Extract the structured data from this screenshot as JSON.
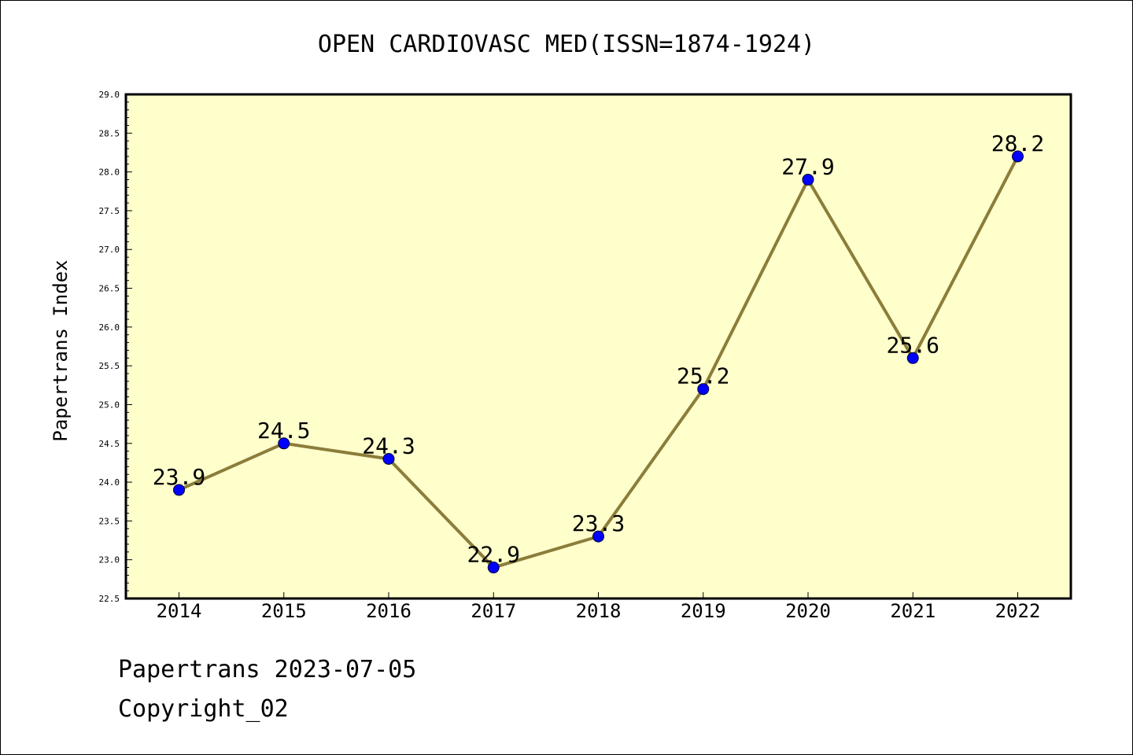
{
  "chart_data": {
    "type": "line",
    "title": "OPEN CARDIOVASC MED(ISSN=1874-1924)",
    "ylabel": "Papertrans Index",
    "xlabel": "",
    "x": [
      "2014",
      "2015",
      "2016",
      "2017",
      "2018",
      "2019",
      "2020",
      "2021",
      "2022"
    ],
    "series": [
      {
        "values": [
          23.9,
          24.5,
          24.3,
          22.9,
          23.3,
          25.2,
          27.9,
          25.6,
          28.2
        ],
        "labels": [
          "23.9",
          "24.5",
          "24.3",
          "22.9",
          "23.3",
          "25.2",
          "27.9",
          "25.6",
          "28.2"
        ]
      }
    ],
    "ylim": [
      22.5,
      29.0
    ],
    "yticks": [
      "22.5",
      "23.0",
      "23.5",
      "24.0",
      "24.5",
      "25.0",
      "25.5",
      "26.0",
      "26.5",
      "27.0",
      "27.5",
      "28.0",
      "28.5",
      "29.0"
    ],
    "grid": false,
    "colors": {
      "plot_background": "#ffffcc",
      "line": "#8b7d3a",
      "marker": "#0000ff"
    }
  },
  "footer": {
    "line1": "Papertrans 2023-07-05",
    "line2": "Copyright_02"
  }
}
